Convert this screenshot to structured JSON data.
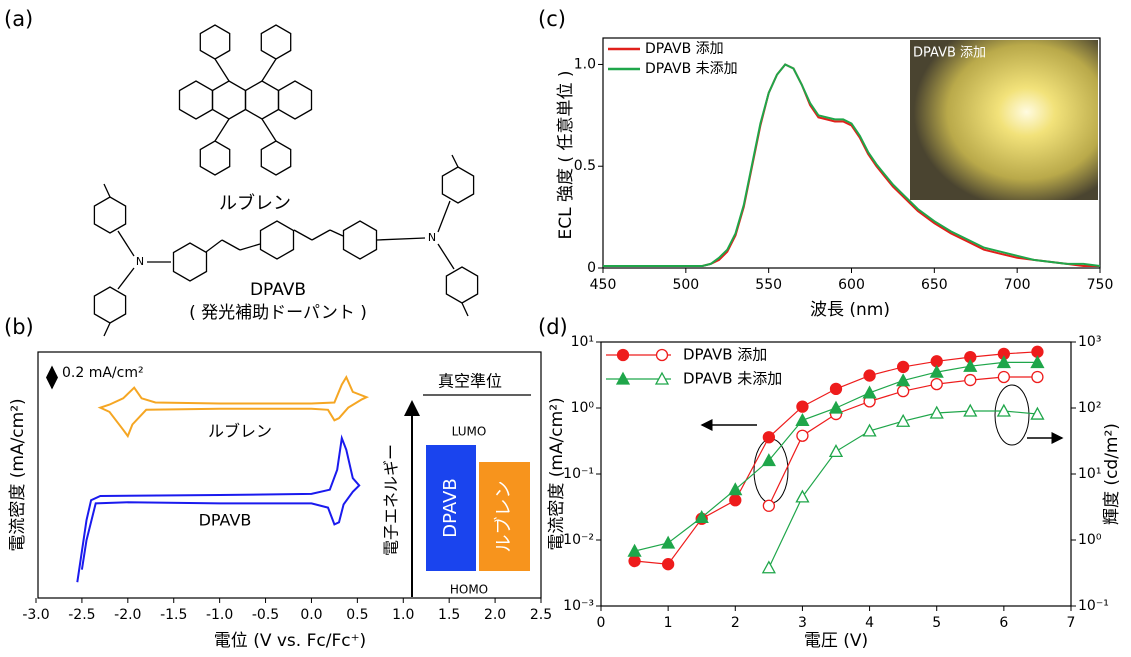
{
  "structures": {
    "panel_label": "(a)",
    "rubrene": "ルブレン",
    "dpavb": "DPAVB",
    "dpavb_note": "( 発光補助ドーパント )",
    "atom": "N"
  },
  "chart_data": [
    {
      "type": "line",
      "panel_label": "(b)",
      "x_label": "電位 (V vs. Fc/Fc⁺)",
      "y_label": "電流密度 (mA/cm²)",
      "scale_bar_label": "0.2 mA/cm²",
      "xlim": [
        -3.0,
        2.5
      ],
      "xticks": [
        {
          "value": -3.0,
          "label": "-3.0"
        },
        -2.5,
        {
          "value": -2.0,
          "label": "-2.0"
        },
        -1.5,
        {
          "value": -1.0,
          "label": "-1.0"
        },
        -0.5,
        {
          "value": 0.0,
          "label": "0.0"
        },
        0.5,
        {
          "value": 1.0,
          "label": "1.0"
        },
        1.5,
        {
          "value": 2.0,
          "label": "2.0"
        },
        2.5
      ],
      "ylim": [
        0,
        2.34
      ],
      "series": [
        {
          "name": "ルブレン",
          "color": "#f5a623",
          "x": [
            0.0,
            0.25,
            0.33,
            0.38,
            0.45,
            0.6,
            0.55,
            0.4,
            0.3,
            0.25,
            0.18,
            0.0,
            -1.0,
            -1.8,
            -1.95,
            -2.0,
            -2.05,
            -2.2,
            -2.3,
            -2.2,
            -2.05,
            -1.93,
            -1.85,
            -1.7,
            -1.0,
            0.0
          ],
          "values": [
            1.85,
            1.86,
            2.03,
            2.1,
            1.96,
            1.91,
            1.89,
            1.81,
            1.71,
            1.69,
            1.79,
            1.8,
            1.8,
            1.79,
            1.65,
            1.54,
            1.6,
            1.77,
            1.81,
            1.84,
            1.9,
            2.0,
            1.9,
            1.86,
            1.85,
            1.85
          ]
        },
        {
          "name": "DPAVB",
          "color": "#1a1aee",
          "x": [
            -2.55,
            -2.45,
            -2.4,
            -2.3,
            -1.0,
            0.0,
            0.2,
            0.28,
            0.33,
            0.38,
            0.45,
            0.52,
            0.45,
            0.35,
            0.3,
            0.25,
            0.18,
            0.0,
            -1.0,
            -2.0,
            -2.35,
            -2.45,
            -2.5
          ],
          "values": [
            0.15,
            0.74,
            0.93,
            0.97,
            0.98,
            0.99,
            1.03,
            1.22,
            1.52,
            1.41,
            1.14,
            1.07,
            1.01,
            0.89,
            0.72,
            0.7,
            0.86,
            0.9,
            0.9,
            0.91,
            0.9,
            0.55,
            0.27
          ]
        }
      ],
      "energy_diagram": {
        "title": "真空準位",
        "axis_label": "電子エネルギー",
        "lumo": "LUMO",
        "homo": "HOMO",
        "levels": [
          {
            "name": "DPAVB",
            "color": "#1a44ee"
          },
          {
            "name": "ルブレン",
            "color": "#f7941d"
          }
        ]
      }
    },
    {
      "type": "line",
      "panel_label": "(c)",
      "x_label": "波長 (nm)",
      "y_label": "ECL 強度 ( 任意単位 )",
      "inset_label": "DPAVB 添加",
      "legend": "upper left",
      "xlim": [
        450,
        750
      ],
      "xticks": [
        450,
        500,
        550,
        600,
        650,
        700,
        750
      ],
      "ylim": [
        0,
        1.13
      ],
      "yticks": [
        0,
        0.5,
        {
          "value": 1.0,
          "label": "1.0"
        }
      ],
      "x": [
        450,
        460,
        470,
        480,
        490,
        500,
        510,
        515,
        520,
        525,
        530,
        535,
        540,
        545,
        550,
        555,
        560,
        565,
        570,
        575,
        580,
        585,
        590,
        595,
        600,
        605,
        610,
        615,
        620,
        625,
        630,
        640,
        650,
        660,
        670,
        680,
        690,
        700,
        710,
        720,
        730,
        740,
        750
      ],
      "series": [
        {
          "name": "DPAVB 添加",
          "color": "#e0201b",
          "values": [
            0.01,
            0.01,
            0.01,
            0.01,
            0.01,
            0.01,
            0.01,
            0.02,
            0.04,
            0.08,
            0.16,
            0.3,
            0.5,
            0.7,
            0.86,
            0.95,
            1.0,
            0.98,
            0.9,
            0.8,
            0.74,
            0.73,
            0.72,
            0.72,
            0.7,
            0.64,
            0.56,
            0.5,
            0.45,
            0.4,
            0.36,
            0.28,
            0.22,
            0.17,
            0.13,
            0.09,
            0.07,
            0.05,
            0.04,
            0.03,
            0.02,
            0.01,
            0.01
          ]
        },
        {
          "name": "DPAVB 未添加",
          "color": "#1fa64a",
          "values": [
            0.01,
            0.01,
            0.01,
            0.01,
            0.01,
            0.01,
            0.01,
            0.02,
            0.05,
            0.09,
            0.17,
            0.31,
            0.51,
            0.71,
            0.86,
            0.95,
            1.0,
            0.98,
            0.9,
            0.81,
            0.75,
            0.74,
            0.73,
            0.73,
            0.71,
            0.65,
            0.57,
            0.51,
            0.46,
            0.41,
            0.37,
            0.29,
            0.23,
            0.18,
            0.14,
            0.1,
            0.08,
            0.06,
            0.04,
            0.03,
            0.02,
            0.02,
            0.01
          ]
        }
      ]
    },
    {
      "type": "line",
      "panel_label": "(d)",
      "x_label": "電圧 (V)",
      "y_label": "電流密度 (mA/cm²)",
      "y2_label": "輝度 (cd/m²)",
      "legend": "upper left",
      "ylog": true,
      "y2log": true,
      "xlim": [
        0,
        7
      ],
      "xticks": [
        0,
        1,
        2,
        3,
        4,
        5,
        6,
        7
      ],
      "ylim": [
        0.001,
        10
      ],
      "yticks": [
        {
          "value": 0.001,
          "label": "10⁻³"
        },
        {
          "value": 0.01,
          "label": "10⁻²"
        },
        {
          "value": 0.1,
          "label": "10⁻¹"
        },
        {
          "value": 1,
          "label": "10⁰"
        },
        {
          "value": 10,
          "label": "10¹"
        }
      ],
      "y2lim": [
        0.1,
        1000
      ],
      "y2ticks": [
        {
          "value": 0.1,
          "label": "10⁻¹"
        },
        {
          "value": 1,
          "label": "10⁰"
        },
        {
          "value": 10,
          "label": "10¹"
        },
        {
          "value": 100,
          "label": "10²"
        },
        {
          "value": 1000,
          "label": "10³"
        }
      ],
      "x": [
        0.5,
        1,
        1.5,
        2,
        2.5,
        3,
        3.5,
        4,
        4.5,
        5,
        5.5,
        6,
        6.5
      ],
      "series": [
        {
          "name": "DPAVB 添加",
          "color": "#ee1c1c",
          "marker": "circle",
          "filled": true,
          "values": [
            0.0048,
            0.0043,
            0.021,
            0.04,
            0.36,
            1.05,
            1.95,
            3.1,
            4.2,
            5.1,
            5.9,
            6.6,
            7.1
          ]
        },
        {
          "name": "DPAVB 添加",
          "color": "#ee1c1c",
          "marker": "circle",
          "filled": false,
          "axis": "y2",
          "values": [
            null,
            null,
            null,
            null,
            3.3,
            38,
            81,
            126,
            180,
            230,
            265,
            295,
            295
          ]
        },
        {
          "name": "DPAVB 未添加",
          "color": "#1fa64a",
          "marker": "triangle",
          "filled": true,
          "values": [
            0.0068,
            0.009,
            0.022,
            0.058,
            0.16,
            0.65,
            1.0,
            1.7,
            2.6,
            3.5,
            4.3,
            4.9,
            4.9
          ]
        },
        {
          "name": "DPAVB 未添加",
          "color": "#1fa64a",
          "marker": "triangle",
          "filled": false,
          "axis": "y2",
          "values": [
            null,
            null,
            null,
            null,
            0.38,
            4.5,
            22,
            45,
            63,
            84,
            90,
            90,
            81
          ]
        }
      ]
    }
  ]
}
